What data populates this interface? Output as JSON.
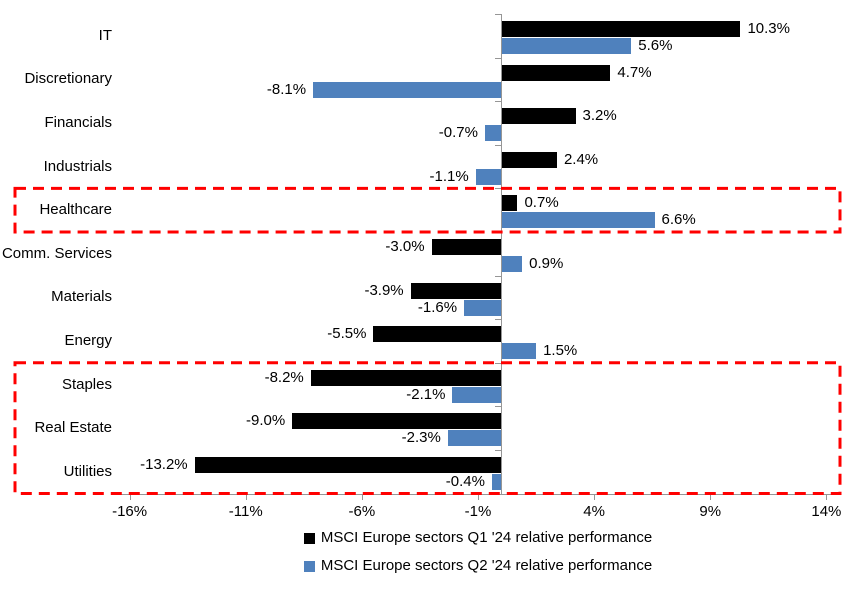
{
  "chart_data": {
    "type": "bar",
    "orientation": "horizontal",
    "categories": [
      "IT",
      "Discretionary",
      "Financials",
      "Industrials",
      "Healthcare",
      "Comm. Services",
      "Materials",
      "Energy",
      "Staples",
      "Real Estate",
      "Utilities"
    ],
    "series": [
      {
        "name": "MSCI Europe sectors Q1 '24 relative performance",
        "color": "#000000",
        "values": [
          10.3,
          4.7,
          3.2,
          2.4,
          0.7,
          -3.0,
          -3.9,
          -5.5,
          -8.2,
          -9.0,
          -13.2
        ],
        "labels": [
          "10.3%",
          "4.7%",
          "3.2%",
          "2.4%",
          "0.7%",
          "-3.0%",
          "-3.9%",
          "-5.5%",
          "-8.2%",
          "-9.0%",
          "-13.2%"
        ]
      },
      {
        "name": "MSCI Europe sectors Q2 '24 relative performance",
        "color": "#4F81BD",
        "values": [
          5.6,
          -8.1,
          -0.7,
          -1.1,
          6.6,
          0.9,
          -1.6,
          1.5,
          -2.1,
          -2.3,
          -0.4
        ],
        "labels": [
          "5.6%",
          "-8.1%",
          "-0.7%",
          "-1.1%",
          "6.6%",
          "0.9%",
          "-1.6%",
          "1.5%",
          "-2.1%",
          "-2.3%",
          "-0.4%"
        ]
      }
    ],
    "x_axis": {
      "min": -16.5,
      "max": 14.5,
      "ticks": [
        -16,
        -11,
        -6,
        -1,
        4,
        9,
        14
      ],
      "tick_labels": [
        "-16%",
        "-11%",
        "-6%",
        "-1%",
        "4%",
        "9%",
        "14%"
      ],
      "unit": "%"
    },
    "grid": false,
    "legend_position": "bottom-center",
    "axis_color": "#969696",
    "highlights": [
      {
        "from_category": "Healthcare",
        "to_category": "Healthcare",
        "color": "#FF0000"
      },
      {
        "from_category": "Staples",
        "to_category": "Utilities",
        "color": "#FF0000"
      }
    ]
  }
}
